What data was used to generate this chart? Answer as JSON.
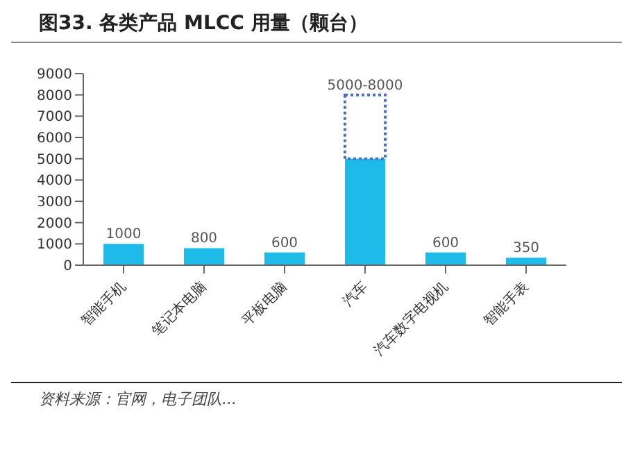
{
  "chart_data": {
    "type": "bar",
    "title": "图33. 各类产品 MLCC 用量（颗台）",
    "categories": [
      "智能手机",
      "笔记本电脑",
      "平板电脑",
      "汽车",
      "汽车数字电视机",
      "智能手表"
    ],
    "stacked": true,
    "series": [
      {
        "color": "#1ebbe8",
        "values": [
          1000,
          800,
          600,
          5000,
          600,
          350
        ],
        "value_labels": [
          "1000",
          "800",
          "600",
          null,
          "600",
          "350"
        ]
      },
      {
        "color": "#4a6fd0",
        "line_style": "dotted",
        "values": [
          null,
          null,
          null,
          3000,
          null,
          null
        ],
        "value_labels": [
          null,
          null,
          null,
          "5000-8000",
          null,
          null
        ]
      }
    ],
    "ylim": [
      0,
      9000
    ],
    "yticks": [
      0,
      1000,
      2000,
      3000,
      4000,
      5000,
      6000,
      7000,
      8000,
      9000
    ],
    "grid": false,
    "legend": false,
    "annotations": [
      "资料来源：官网，电子团队..."
    ]
  }
}
